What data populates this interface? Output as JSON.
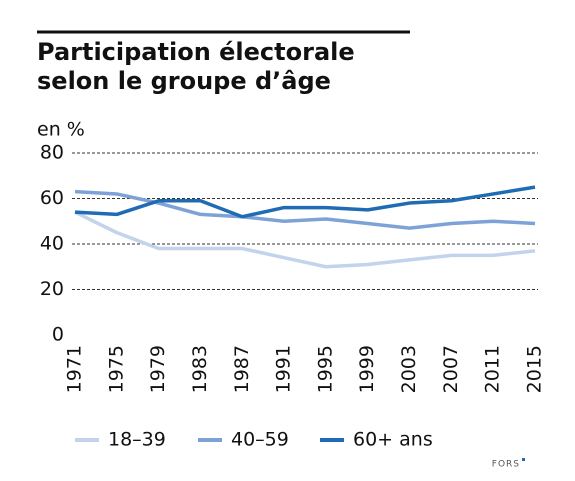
{
  "chart_data": {
    "type": "line",
    "title": "Participation électorale selon le groupe d’âge",
    "y_label": "en %",
    "source": "FORS",
    "x": [
      1971,
      1975,
      1979,
      1983,
      1987,
      1991,
      1995,
      1999,
      2003,
      2007,
      2011,
      2015
    ],
    "xlim": [
      1971,
      2015
    ],
    "xticks": [
      1971,
      1975,
      1979,
      1983,
      1987,
      1991,
      1995,
      1999,
      2003,
      2007,
      2011,
      2015
    ],
    "ylim": [
      0,
      80
    ],
    "yticks": [
      0,
      20,
      40,
      60,
      80
    ],
    "grid": true,
    "series": [
      {
        "name": "18–39",
        "color": "#c3d3ec",
        "values": [
          54,
          45,
          38,
          38,
          38,
          34,
          30,
          31,
          33,
          35,
          35,
          37
        ]
      },
      {
        "name": "40–59",
        "color": "#7ea2d6",
        "values": [
          63,
          62,
          58,
          53,
          52,
          50,
          51,
          49,
          47,
          49,
          50,
          49
        ]
      },
      {
        "name": "60+ ans",
        "color": "#1f6cb4",
        "values": [
          54,
          53,
          59,
          59,
          52,
          56,
          56,
          55,
          58,
          59,
          62,
          65
        ]
      }
    ]
  }
}
